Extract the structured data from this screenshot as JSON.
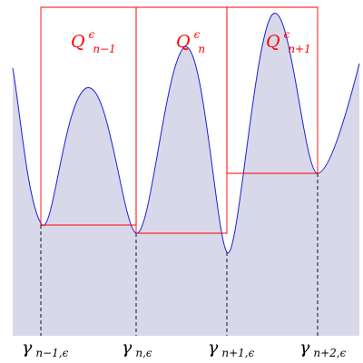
{
  "colors": {
    "curve": "#1f1fd6",
    "fill": "#d8d8ea",
    "boxes": "#ff0000",
    "guides": "#000000"
  },
  "boxes": [
    {
      "symbol": "Q",
      "sup": "ϵ",
      "sub": "n−1"
    },
    {
      "symbol": "Q",
      "sup": "ϵ",
      "sub": "n"
    },
    {
      "symbol": "Q",
      "sup": "ϵ",
      "sub": "n+1"
    }
  ],
  "ticks": [
    {
      "symbol": "γ",
      "sub": "n−1,ϵ"
    },
    {
      "symbol": "γ",
      "sub": "n,ϵ"
    },
    {
      "symbol": "γ",
      "sub": "n+1,ϵ"
    },
    {
      "symbol": "γ",
      "sub": "n+2,ϵ"
    }
  ]
}
